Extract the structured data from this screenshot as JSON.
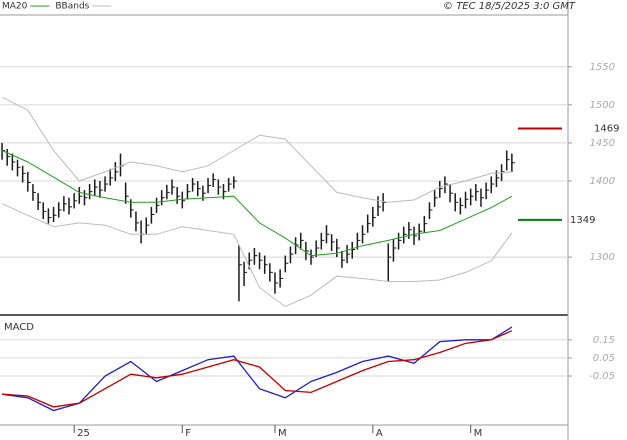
{
  "header": {
    "copyright": "© TEC 18/5/2025 3:0 GMT"
  },
  "chart_data": [
    {
      "type": "ohlc",
      "xlim": [
        -0.4,
        109.9
      ],
      "ylim": [
        1224,
        1618
      ],
      "yticks": [
        1300,
        1400,
        1450,
        1500,
        1550
      ],
      "grid": true,
      "bar_color": "#1a1a1a",
      "high": [
        1450,
        1442,
        1436,
        1428,
        1420,
        1412,
        1396,
        1384,
        1372,
        1364,
        1366,
        1372,
        1380,
        1378,
        1384,
        1392,
        1388,
        1396,
        1402,
        1400,
        1406,
        1416,
        1425,
        1436,
        1398,
        1376,
        1360,
        1348,
        1352,
        1366,
        1378,
        1388,
        1395,
        1402,
        1392,
        1386,
        1396,
        1404,
        1400,
        1394,
        1404,
        1410,
        1402,
        1396,
        1404,
        1406,
        1316,
        1294,
        1306,
        1312,
        1306,
        1302,
        1292,
        1280,
        1284,
        1302,
        1314,
        1326,
        1332,
        1320,
        1310,
        1322,
        1332,
        1342,
        1330,
        1324,
        1308,
        1316,
        1320,
        1332,
        1342,
        1356,
        1366,
        1380,
        1384,
        1318,
        1324,
        1332,
        1340,
        1346,
        1340,
        1344,
        1354,
        1372,
        1388,
        1400,
        1406,
        1396,
        1384,
        1378,
        1386,
        1390,
        1396,
        1390,
        1398,
        1406,
        1414,
        1422,
        1440,
        1436
      ],
      "low": [
        1428,
        1420,
        1414,
        1406,
        1398,
        1386,
        1374,
        1362,
        1350,
        1344,
        1346,
        1352,
        1360,
        1356,
        1364,
        1370,
        1368,
        1376,
        1380,
        1378,
        1386,
        1394,
        1400,
        1406,
        1370,
        1352,
        1334,
        1318,
        1330,
        1344,
        1358,
        1368,
        1376,
        1382,
        1370,
        1364,
        1376,
        1386,
        1380,
        1374,
        1384,
        1392,
        1382,
        1376,
        1386,
        1390,
        1242,
        1262,
        1284,
        1290,
        1284,
        1278,
        1268,
        1252,
        1260,
        1280,
        1292,
        1304,
        1310,
        1296,
        1290,
        1300,
        1310,
        1318,
        1308,
        1300,
        1286,
        1292,
        1298,
        1310,
        1318,
        1332,
        1340,
        1354,
        1360,
        1268,
        1294,
        1310,
        1318,
        1324,
        1316,
        1322,
        1332,
        1350,
        1366,
        1378,
        1384,
        1372,
        1360,
        1356,
        1364,
        1368,
        1374,
        1366,
        1376,
        1384,
        1392,
        1400,
        1414,
        1412
      ],
      "close": [
        1440,
        1432,
        1425,
        1418,
        1410,
        1398,
        1385,
        1372,
        1360,
        1352,
        1355,
        1362,
        1370,
        1366,
        1374,
        1380,
        1378,
        1386,
        1392,
        1388,
        1396,
        1404,
        1412,
        1420,
        1380,
        1362,
        1345,
        1330,
        1342,
        1356,
        1368,
        1378,
        1385,
        1392,
        1380,
        1374,
        1386,
        1396,
        1390,
        1384,
        1394,
        1402,
        1392,
        1386,
        1396,
        1400,
        1290,
        1280,
        1296,
        1302,
        1296,
        1290,
        1280,
        1266,
        1272,
        1292,
        1304,
        1316,
        1322,
        1308,
        1300,
        1312,
        1322,
        1330,
        1320,
        1312,
        1296,
        1304,
        1310,
        1322,
        1330,
        1344,
        1352,
        1366,
        1372,
        1300,
        1312,
        1322,
        1330,
        1336,
        1328,
        1334,
        1344,
        1362,
        1378,
        1390,
        1396,
        1384,
        1372,
        1368,
        1376,
        1380,
        1386,
        1378,
        1388,
        1396,
        1404,
        1412,
        1428,
        1424
      ],
      "series": [
        {
          "name": "MA20",
          "color": "#1f9e1f",
          "x": [
            0,
            5,
            10,
            15,
            20,
            25,
            30,
            35,
            40,
            45,
            50,
            55,
            60,
            65,
            70,
            75,
            80,
            85,
            90,
            95,
            99
          ],
          "values": [
            1440,
            1425,
            1405,
            1385,
            1378,
            1372,
            1372,
            1376,
            1378,
            1380,
            1345,
            1325,
            1302,
            1305,
            1315,
            1322,
            1330,
            1335,
            1350,
            1365,
            1380
          ]
        },
        {
          "name": "BBands",
          "color": "#bbbbbb",
          "x": [
            0,
            5,
            10,
            15,
            20,
            25,
            30,
            35,
            40,
            45,
            50,
            55,
            60,
            65,
            70,
            75,
            80,
            85,
            90,
            95,
            99
          ],
          "upper": [
            1510,
            1493,
            1440,
            1400,
            1412,
            1425,
            1420,
            1412,
            1420,
            1440,
            1460,
            1455,
            1420,
            1385,
            1378,
            1372,
            1375,
            1392,
            1400,
            1410,
            1412
          ],
          "lower": [
            1370,
            1355,
            1340,
            1345,
            1342,
            1330,
            1330,
            1340,
            1335,
            1330,
            1260,
            1235,
            1250,
            1275,
            1272,
            1268,
            1268,
            1270,
            1280,
            1295,
            1332
          ]
        }
      ],
      "markers": [
        {
          "value": 1469,
          "color": "#c00000"
        },
        {
          "value": 1349,
          "color": "#008000"
        }
      ]
    },
    {
      "type": "line",
      "title": "MACD",
      "xlim": [
        -0.4,
        109.9
      ],
      "ylim": [
        -0.32,
        0.27
      ],
      "yticks": [
        0.15,
        0.05,
        -0.05
      ],
      "xticks": [
        {
          "value": 14,
          "label": "25"
        },
        {
          "value": 35,
          "label": "F"
        },
        {
          "value": 53,
          "label": "M"
        },
        {
          "value": 72,
          "label": "A"
        },
        {
          "value": 91,
          "label": "M"
        }
      ],
      "series": [
        {
          "color": "#1f1fc0",
          "x": [
            0,
            5,
            10,
            15,
            20,
            25,
            30,
            35,
            40,
            45,
            50,
            55,
            60,
            65,
            70,
            75,
            80,
            85,
            90,
            95,
            99
          ],
          "values": [
            -0.15,
            -0.17,
            -0.24,
            -0.2,
            -0.05,
            0.03,
            -0.08,
            -0.02,
            0.04,
            0.06,
            -0.12,
            -0.17,
            -0.08,
            -0.03,
            0.03,
            0.06,
            0.02,
            0.14,
            0.15,
            0.15,
            0.22
          ]
        },
        {
          "color": "#c00000",
          "x": [
            0,
            5,
            10,
            15,
            20,
            25,
            30,
            35,
            40,
            45,
            50,
            55,
            60,
            65,
            70,
            75,
            80,
            85,
            90,
            95,
            99
          ],
          "values": [
            -0.15,
            -0.16,
            -0.22,
            -0.2,
            -0.12,
            -0.04,
            -0.06,
            -0.04,
            0.0,
            0.04,
            0.0,
            -0.13,
            -0.14,
            -0.08,
            -0.02,
            0.03,
            0.04,
            0.08,
            0.13,
            0.15,
            0.2
          ]
        }
      ]
    }
  ]
}
